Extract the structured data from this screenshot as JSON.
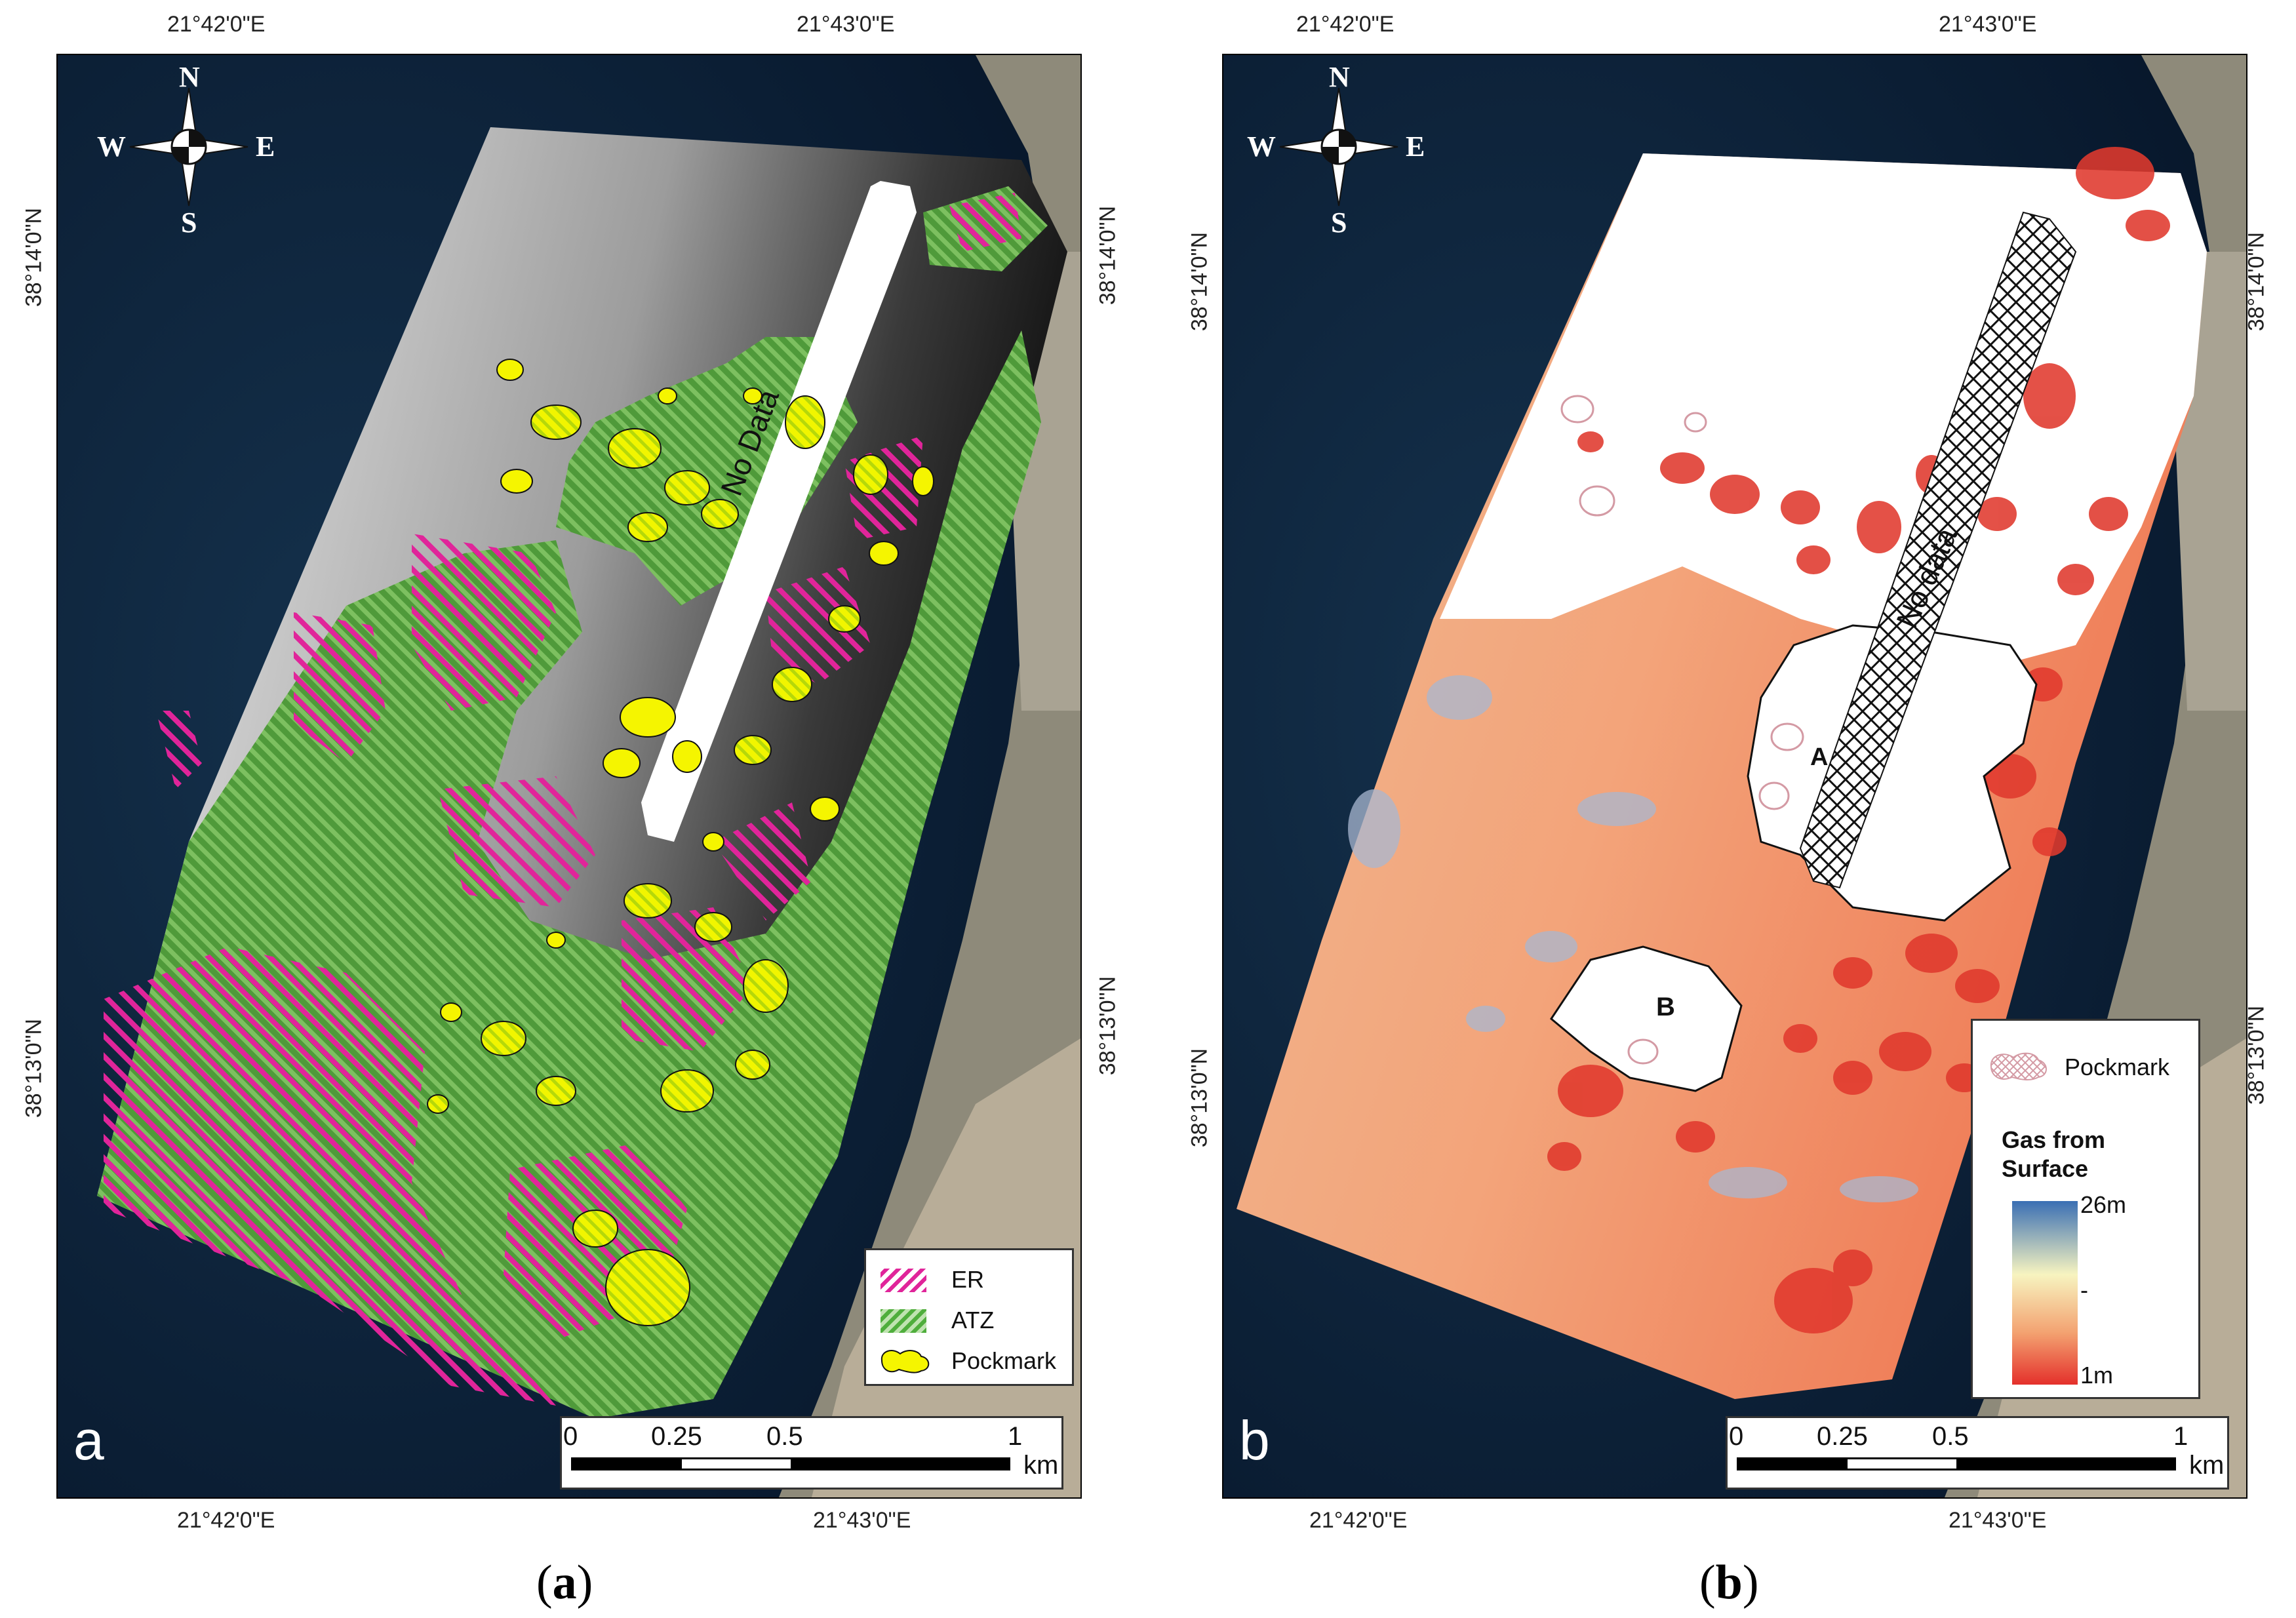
{
  "panel_a": {
    "letter": "a",
    "top_lon_labels": [
      "21°42'0\"E",
      "21°43'0\"E"
    ],
    "bottom_lon_labels": [
      "21°42'0\"E",
      "21°43'0\"E"
    ],
    "left_lat_labels": [
      "38°14'0\"N",
      "38°13'0\"N"
    ],
    "right_lat_labels": [
      "38°14'0\"N",
      "38°13'0\"N"
    ],
    "no_data_label": "No Data",
    "legend": {
      "items": [
        {
          "label": "ER",
          "color": "#e0259a"
        },
        {
          "label": "ATZ",
          "color": "#4fae3c"
        },
        {
          "label": "Pockmark",
          "color": "#f5f500"
        }
      ]
    },
    "scale": {
      "ticks": [
        "0",
        "0.25",
        "0.5",
        "1"
      ],
      "unit": "km"
    },
    "compass": {
      "n": "N",
      "s": "S",
      "e": "E",
      "w": "W"
    },
    "caption": "(a)"
  },
  "panel_b": {
    "letter": "b",
    "top_lon_labels": [
      "21°42'0\"E",
      "21°43'0\"E"
    ],
    "bottom_lon_labels": [
      "21°42'0\"E",
      "21°43'0\"E"
    ],
    "left_lat_labels": [
      "38°14'0\"N",
      "38°13'0\"N"
    ],
    "right_lat_labels": [
      "38°14'0\"N",
      "38°13'0\"N"
    ],
    "no_data_label": "No data",
    "area_labels": [
      "A",
      "B"
    ],
    "legend": {
      "pockmark_label": "Pockmark",
      "ramp_title": "Gas from Surface",
      "ramp_top": "26m",
      "ramp_mid": "-",
      "ramp_bottom": "1m",
      "ramp_colors": [
        "#3a6fb4",
        "#f7f4c0",
        "#f3a170",
        "#e4302b"
      ]
    },
    "scale": {
      "ticks": [
        "0",
        "0.25",
        "0.5",
        "1"
      ],
      "unit": "km"
    },
    "compass": {
      "n": "N",
      "s": "S",
      "e": "E",
      "w": "W"
    },
    "caption": "(b)"
  }
}
